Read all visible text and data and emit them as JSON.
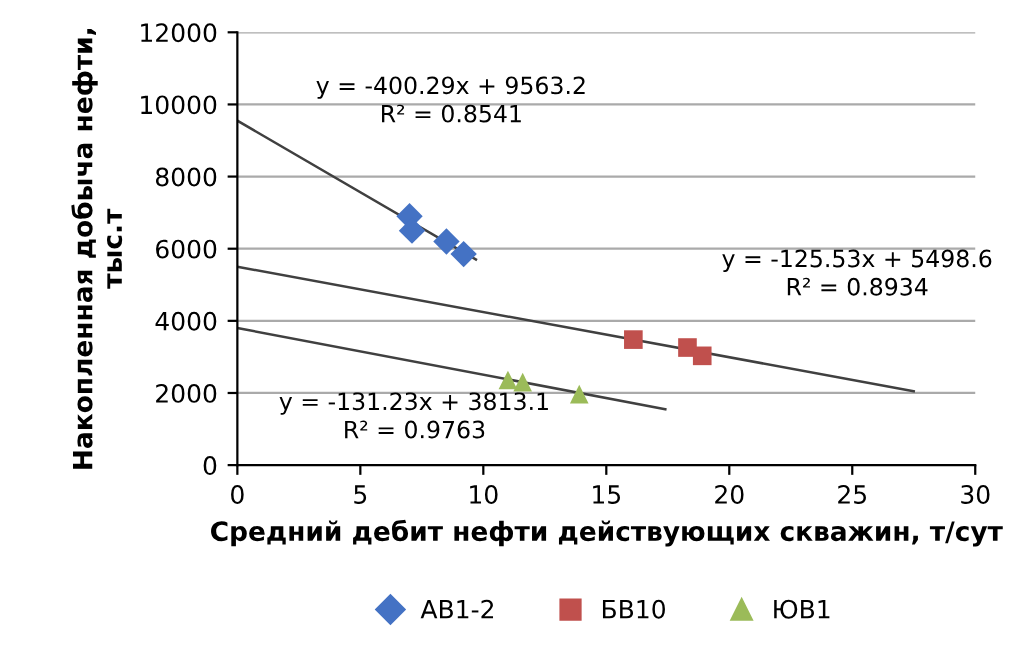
{
  "chart_data": {
    "type": "scatter",
    "xlabel": "Средний дебит нефти действующих скважин, т/сут",
    "ylabel": "Накопленная добыча нефти,\nтыс.т",
    "xlim": [
      0,
      30
    ],
    "xticks": [
      0,
      5,
      10,
      15,
      20,
      25,
      30
    ],
    "ylim": [
      0,
      12000
    ],
    "yticks": [
      0,
      2000,
      4000,
      6000,
      8000,
      10000,
      12000
    ],
    "grid": "y",
    "legend": "bottom",
    "series": [
      {
        "name": "АВ1-2",
        "color": "#4472c4",
        "marker": "diamond",
        "x": [
          7.0,
          7.1,
          8.5,
          9.2
        ],
        "values": [
          6900,
          6500,
          6200,
          5850
        ]
      },
      {
        "name": "БВ10",
        "color": "#c0504d",
        "marker": "square",
        "x": [
          16.1,
          18.3,
          18.9
        ],
        "values": [
          3480,
          3260,
          3030
        ]
      },
      {
        "name": "ЮВ1",
        "color": "#9bbb59",
        "marker": "triangle",
        "x": [
          11.0,
          11.6,
          13.9
        ],
        "values": [
          2360,
          2300,
          1970
        ]
      },
      {
        "type": "line",
        "color": "#404040",
        "x": [
          0,
          9.7
        ],
        "values": [
          9550,
          5700
        ]
      },
      {
        "type": "line",
        "color": "#404040",
        "x": [
          0,
          27.5
        ],
        "values": [
          5500,
          2050
        ]
      },
      {
        "type": "line",
        "color": "#404040",
        "x": [
          0,
          17.4
        ],
        "values": [
          3800,
          1550
        ]
      }
    ],
    "annotations": [
      "y = -400.29x + 9563.2\nR² = 0.8541",
      "y = -125.53x + 5498.6\nR² = 0.8934",
      "y = -131.23x + 3813.1\nR² = 0.9763"
    ]
  }
}
